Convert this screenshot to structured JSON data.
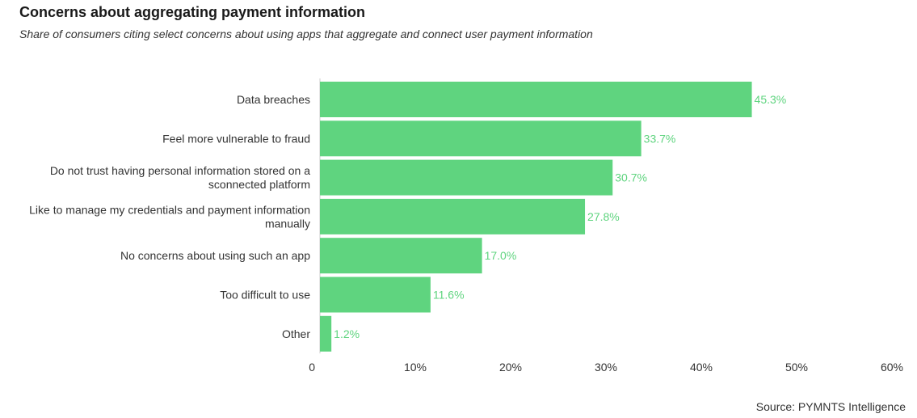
{
  "header": {
    "title": "Concerns about aggregating payment information",
    "subtitle": "Share of consumers citing select concerns about using apps that aggregate and connect user payment information"
  },
  "footer": {
    "source": "Source: PYMNTS Intelligence"
  },
  "colors": {
    "bar": "#5fd47f",
    "value_label": "#5fd47f",
    "axis": "#cccccc",
    "text": "#333333"
  },
  "chart_data": {
    "type": "bar",
    "orientation": "horizontal",
    "title": "Concerns about aggregating payment information",
    "subtitle": "Share of consumers citing select concerns about using apps that aggregate and connect user payment information",
    "categories": [
      [
        "Data breaches"
      ],
      [
        "Feel more vulnerable to fraud"
      ],
      [
        "Do not trust having personal information stored on a",
        "sconnected platform"
      ],
      [
        "Like to manage my credentials and payment information",
        "manually"
      ],
      [
        "No concerns about using such an app"
      ],
      [
        "Too difficult to use"
      ],
      [
        "Other"
      ]
    ],
    "values": [
      45.3,
      33.7,
      30.7,
      27.8,
      17.0,
      11.6,
      1.2
    ],
    "value_labels": [
      "45.3%",
      "33.7%",
      "30.7%",
      "27.8%",
      "17.0%",
      "11.6%",
      "1.2%"
    ],
    "xlim": [
      0,
      60
    ],
    "x_ticks": [
      0,
      10,
      20,
      30,
      40,
      50,
      60
    ],
    "x_tick_labels": [
      "0",
      "10%",
      "20%",
      "30%",
      "40%",
      "50%",
      "60%"
    ],
    "grid": false,
    "legend": "none"
  }
}
